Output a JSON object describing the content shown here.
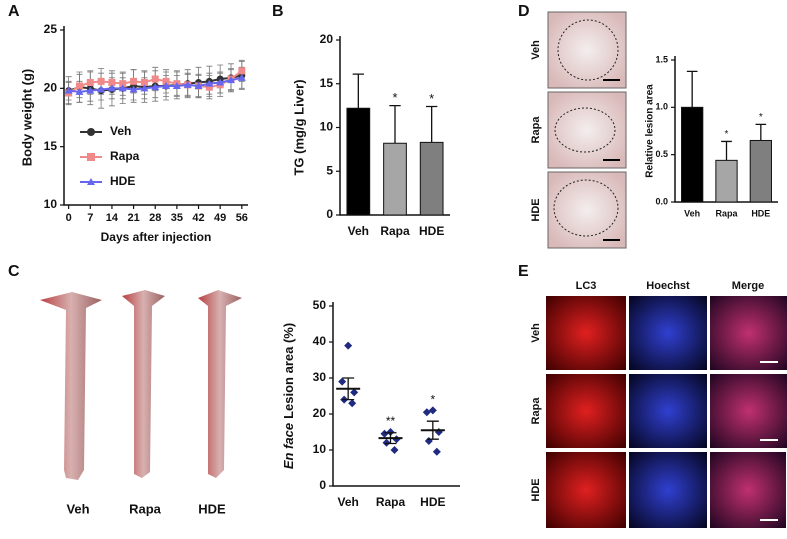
{
  "panel_labels": [
    "A",
    "B",
    "C",
    "D",
    "E"
  ],
  "chart_data": [
    {
      "type": "line",
      "xlabel": "Days after injection",
      "ylabel": "Body weight (g)",
      "x": [
        0,
        3.5,
        7,
        10.5,
        14,
        17.5,
        21,
        24.5,
        28,
        31.5,
        35,
        38.5,
        42,
        45.5,
        49,
        52.5,
        56
      ],
      "xlim": [
        -1.5,
        58
      ],
      "xticks": [
        0,
        7,
        14,
        21,
        28,
        35,
        42,
        49,
        56
      ],
      "ylim": [
        10,
        25
      ],
      "yticks": [
        10,
        15,
        20,
        25
      ],
      "legend": "left",
      "series": [
        {
          "name": "Veh",
          "color": "#333333",
          "marker": "circle",
          "values": [
            19.8,
            20.1,
            20.0,
            19.8,
            19.9,
            20.0,
            20.2,
            20.1,
            20.2,
            20.2,
            20.3,
            20.4,
            20.5,
            20.6,
            20.8,
            20.9,
            21.1
          ],
          "errors": [
            1.2,
            1.3,
            1.4,
            1.5,
            1.4,
            1.3,
            1.4,
            1.3,
            1.3,
            1.2,
            1.2,
            1.2,
            1.3,
            1.3,
            1.2,
            1.2,
            1.2
          ]
        },
        {
          "name": "Rapa",
          "color": "#f08a8a",
          "marker": "square",
          "values": [
            19.6,
            20.2,
            20.5,
            20.6,
            20.5,
            20.4,
            20.6,
            20.5,
            20.8,
            20.6,
            20.4,
            20.3,
            20.2,
            20.1,
            20.3,
            20.8,
            21.5
          ],
          "errors": [
            0.9,
            1.0,
            1.0,
            1.1,
            1.0,
            1.0,
            1.0,
            1.0,
            1.0,
            1.0,
            1.0,
            1.0,
            1.0,
            1.0,
            1.0,
            0.9,
            0.9
          ]
        },
        {
          "name": "HDE",
          "color": "#6666ee",
          "marker": "triangle",
          "values": [
            19.8,
            19.7,
            19.8,
            19.9,
            20.0,
            20.0,
            19.9,
            20.0,
            20.1,
            20.2,
            20.2,
            20.3,
            20.2,
            20.4,
            20.5,
            20.7,
            20.9
          ],
          "errors": [
            0.8,
            0.9,
            0.9,
            0.9,
            0.9,
            0.9,
            0.9,
            0.9,
            0.9,
            0.9,
            0.9,
            0.9,
            0.9,
            0.9,
            0.9,
            0.9,
            0.9
          ]
        }
      ]
    },
    {
      "type": "bar",
      "ylabel": "TG (mg/g Liver)",
      "categories": [
        "Veh",
        "Rapa",
        "HDE"
      ],
      "values": [
        12.2,
        8.2,
        8.3
      ],
      "errors": [
        3.9,
        4.3,
        4.1
      ],
      "colors": [
        "#000000",
        "#a6a6a6",
        "#7f7f7f"
      ],
      "significance": [
        null,
        "*",
        "*"
      ],
      "ylim": [
        0,
        20
      ],
      "yticks": [
        0,
        5,
        10,
        15,
        20
      ]
    },
    {
      "type": "dotplot",
      "ylabel_italic": "En face",
      "ylabel": "Lesion area (%)",
      "categories": [
        "Veh",
        "Rapa",
        "HDE"
      ],
      "points": [
        [
          39,
          29,
          26,
          24,
          23
        ],
        [
          15,
          14.5,
          13,
          12,
          10
        ],
        [
          21,
          20.5,
          15,
          12.5,
          9.5
        ]
      ],
      "means": [
        27,
        13.3,
        15.5
      ],
      "errors": [
        3,
        1.5,
        2.5
      ],
      "color": "#1f2a80",
      "significance": [
        null,
        "**",
        "*"
      ],
      "ylim": [
        0,
        50
      ],
      "yticks": [
        0,
        10,
        20,
        30,
        40,
        50
      ]
    },
    {
      "type": "bar",
      "ylabel": "Relative lesion area",
      "categories": [
        "Veh",
        "Rapa",
        "HDE"
      ],
      "values": [
        1.0,
        0.44,
        0.65
      ],
      "errors": [
        0.38,
        0.2,
        0.17
      ],
      "colors": [
        "#000000",
        "#a6a6a6",
        "#7f7f7f"
      ],
      "significance": [
        null,
        "*",
        "*"
      ],
      "ylim": [
        0,
        1.5
      ],
      "yticks": [
        {
          "value": 0,
          "label": "0.0"
        },
        0.5,
        {
          "value": 1,
          "label": "1.0"
        },
        1.5
      ]
    }
  ],
  "images": {
    "C": {
      "labels": [
        "Veh",
        "Rapa",
        "HDE"
      ]
    },
    "D": {
      "labels": [
        "Veh",
        "Rapa",
        "HDE"
      ]
    },
    "E": {
      "columns": [
        "LC3",
        "Hoechst",
        "Merge"
      ],
      "rows": [
        "Veh",
        "Rapa",
        "HDE"
      ]
    }
  }
}
